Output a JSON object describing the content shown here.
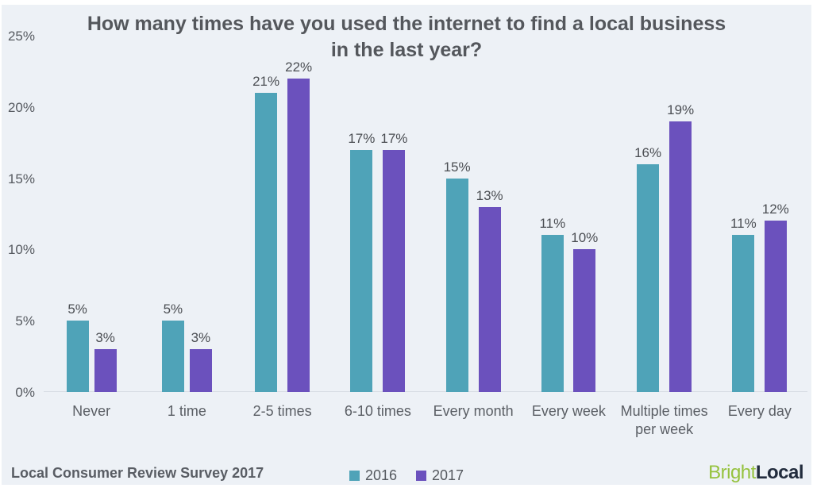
{
  "page": {
    "background_color": "#edf1f6",
    "frame_color": "#ffffff"
  },
  "chart_data": {
    "type": "bar",
    "title": "How many times have you used the internet to find a local business in the last year?",
    "categories": [
      "Never",
      "1 time",
      "2-5 times",
      "6-10 times",
      "Every month",
      "Every week",
      "Multiple times per week",
      "Every day"
    ],
    "series": [
      {
        "name": "2016",
        "color": "#4fa3b8",
        "values": [
          5,
          5,
          21,
          17,
          15,
          11,
          16,
          11
        ]
      },
      {
        "name": "2017",
        "color": "#6b51bd",
        "values": [
          3,
          3,
          22,
          17,
          13,
          10,
          19,
          12
        ]
      }
    ],
    "value_suffix": "%",
    "data_labels_visible": true,
    "xlabel": "",
    "ylabel": "",
    "ylim": [
      0,
      25
    ],
    "ytick_step": 5,
    "yticks": [
      "0%",
      "5%",
      "10%",
      "15%",
      "20%",
      "25%"
    ],
    "grid": false,
    "legend_position": "bottom-center",
    "baseline_color": "#d8dde4"
  },
  "footer": {
    "source_label": "Local Consumer Review Survey 2017",
    "logo": {
      "part1": "Bright",
      "part1_color": "#95c23d",
      "part2": "Local",
      "part2_color": "#222c3d"
    }
  }
}
